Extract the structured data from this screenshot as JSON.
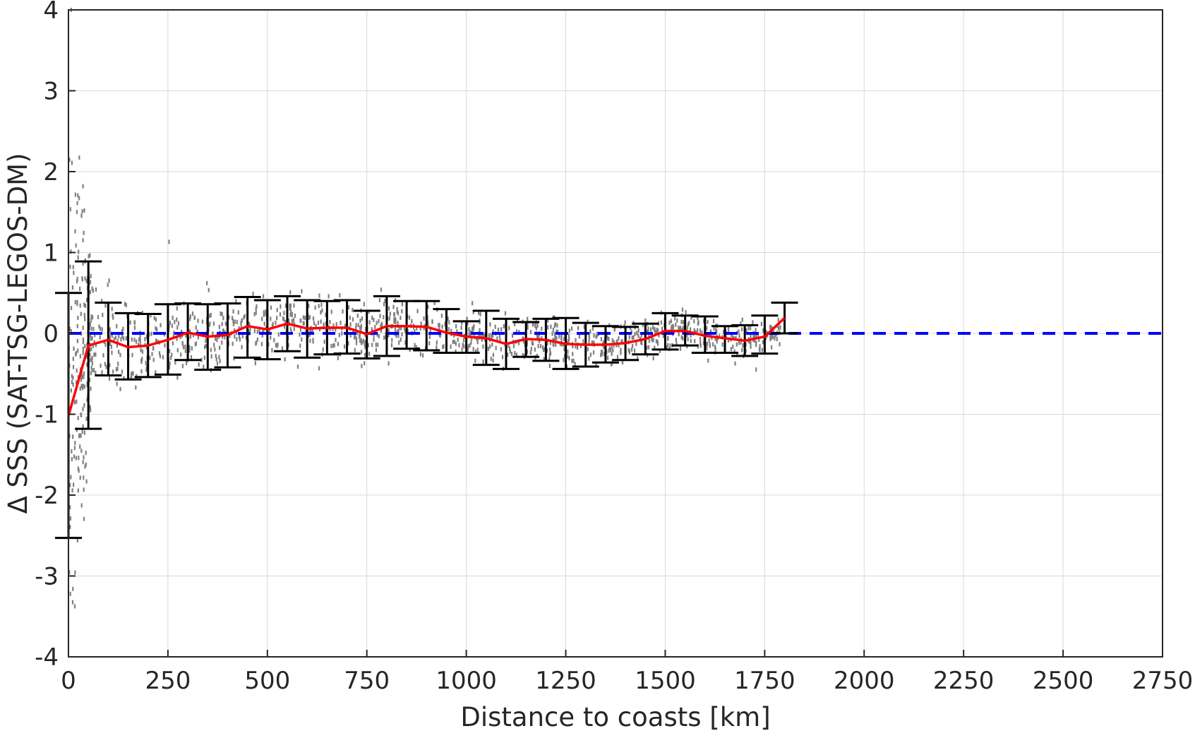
{
  "chart_data": {
    "type": "scatter",
    "xlabel": "Distance to coasts [km]",
    "ylabel": "Δ SSS (SAT-TSG-LEGOS-DM)",
    "xlim": [
      0,
      2750
    ],
    "ylim": [
      -4,
      4
    ],
    "xticks": [
      0,
      250,
      500,
      750,
      1000,
      1250,
      1500,
      1750,
      2000,
      2250,
      2500,
      2750
    ],
    "yticks": [
      -4,
      -3,
      -2,
      -1,
      0,
      1,
      2,
      3,
      4
    ],
    "grid": true,
    "colors": {
      "scatter": "#808080",
      "mean_line": "#ff0000",
      "error_bars": "#000000",
      "zero_line": "#0000ff",
      "grid": "#d9d9d9",
      "axes": "#262626"
    },
    "reference_line": {
      "y": 0,
      "style": "dashed"
    },
    "binned_stats": {
      "x": [
        0,
        50,
        100,
        150,
        200,
        250,
        300,
        350,
        400,
        450,
        500,
        550,
        600,
        650,
        700,
        750,
        800,
        850,
        900,
        950,
        1000,
        1050,
        1100,
        1150,
        1200,
        1250,
        1300,
        1350,
        1400,
        1450,
        1500,
        1550,
        1600,
        1650,
        1700,
        1750,
        1800
      ],
      "mean": [
        -1.02,
        -0.15,
        -0.08,
        -0.17,
        -0.15,
        -0.08,
        0.01,
        -0.04,
        -0.02,
        0.09,
        0.05,
        0.12,
        0.06,
        0.07,
        0.07,
        -0.01,
        0.09,
        0.09,
        0.08,
        0.01,
        -0.04,
        -0.06,
        -0.13,
        -0.07,
        -0.08,
        -0.13,
        -0.14,
        -0.14,
        -0.12,
        -0.07,
        0.03,
        0.03,
        -0.03,
        -0.06,
        -0.09,
        -0.04,
        0.19
      ],
      "lower": [
        -2.53,
        -1.18,
        -0.52,
        -0.57,
        -0.54,
        -0.51,
        -0.33,
        -0.45,
        -0.42,
        -0.3,
        -0.32,
        -0.22,
        -0.3,
        -0.26,
        -0.25,
        -0.31,
        -0.28,
        -0.19,
        -0.21,
        -0.24,
        -0.24,
        -0.39,
        -0.44,
        -0.29,
        -0.34,
        -0.44,
        -0.41,
        -0.36,
        -0.33,
        -0.26,
        -0.2,
        -0.15,
        -0.24,
        -0.24,
        -0.28,
        -0.25,
        0.0
      ],
      "upper": [
        0.5,
        0.89,
        0.38,
        0.25,
        0.24,
        0.36,
        0.37,
        0.36,
        0.37,
        0.45,
        0.41,
        0.46,
        0.41,
        0.4,
        0.41,
        0.28,
        0.46,
        0.4,
        0.4,
        0.3,
        0.15,
        0.28,
        0.18,
        0.14,
        0.18,
        0.19,
        0.13,
        0.09,
        0.08,
        0.12,
        0.25,
        0.22,
        0.21,
        0.09,
        0.1,
        0.22,
        0.38
      ]
    },
    "scatter_envelope": {
      "x": [
        0,
        25,
        50,
        75,
        100,
        150,
        200,
        250,
        300,
        350,
        400,
        450,
        500,
        550,
        600,
        650,
        700,
        750,
        800,
        850,
        900,
        950,
        1000,
        1050,
        1100,
        1150,
        1200,
        1250,
        1300,
        1350,
        1400,
        1450,
        1500,
        1550,
        1600,
        1650,
        1700,
        1750,
        1800
      ],
      "center": [
        -1.0,
        -0.5,
        -0.15,
        -0.1,
        -0.08,
        -0.17,
        -0.15,
        -0.08,
        0.01,
        -0.04,
        -0.02,
        0.09,
        0.05,
        0.12,
        0.06,
        0.07,
        0.07,
        -0.01,
        0.09,
        0.09,
        0.08,
        0.01,
        -0.04,
        -0.06,
        -0.13,
        -0.07,
        -0.08,
        -0.13,
        -0.14,
        -0.14,
        -0.12,
        -0.07,
        0.03,
        0.03,
        -0.03,
        -0.06,
        -0.09,
        -0.04,
        0.1
      ],
      "spread": [
        2.4,
        2.2,
        0.9,
        0.6,
        0.45,
        0.42,
        0.4,
        0.4,
        0.36,
        0.38,
        0.38,
        0.34,
        0.34,
        0.32,
        0.32,
        0.3,
        0.3,
        0.28,
        0.3,
        0.26,
        0.26,
        0.24,
        0.24,
        0.28,
        0.28,
        0.22,
        0.24,
        0.28,
        0.26,
        0.22,
        0.2,
        0.18,
        0.2,
        0.18,
        0.2,
        0.16,
        0.18,
        0.2,
        0.16
      ]
    }
  }
}
